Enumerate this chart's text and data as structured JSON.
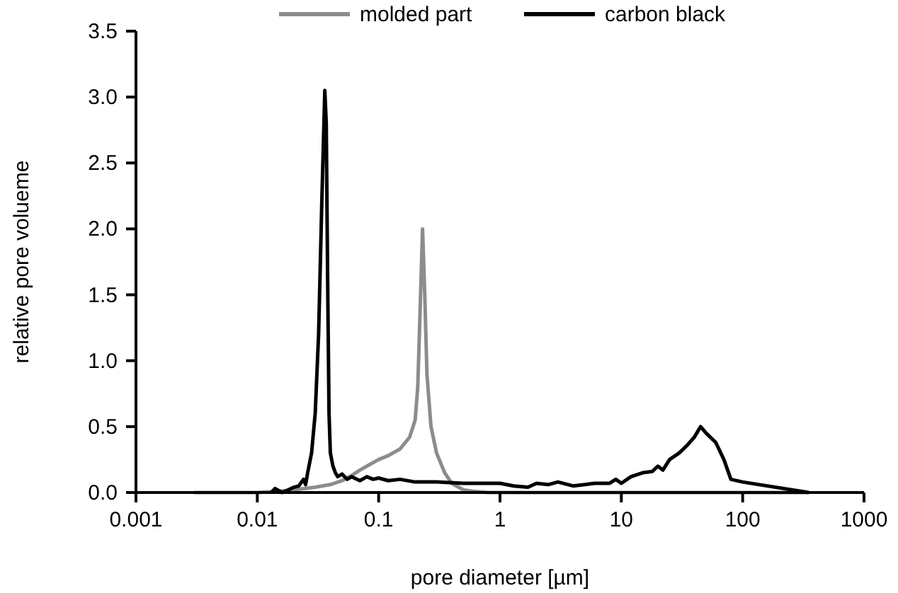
{
  "chart_data": {
    "type": "line",
    "xlabel": "pore diameter [µm]",
    "ylabel": "relative pore volueme",
    "log": "x",
    "xlim": [
      0.001,
      1000
    ],
    "xticks": [
      {
        "value": 0.001,
        "label": "0.001"
      },
      {
        "value": 0.01,
        "label": "0.01"
      },
      {
        "value": 0.1,
        "label": "0.1"
      },
      {
        "value": 1,
        "label": "1"
      },
      {
        "value": 10,
        "label": "10"
      },
      {
        "value": 100,
        "label": "100"
      },
      {
        "value": 1000,
        "label": "1000"
      }
    ],
    "ylim": [
      0,
      3.5
    ],
    "yticks": [
      {
        "value": 0,
        "label": "0.0"
      },
      {
        "value": 0.5,
        "label": "0.5"
      },
      {
        "value": 1,
        "label": "1.0"
      },
      {
        "value": 1.5,
        "label": "1.5"
      },
      {
        "value": 2,
        "label": "2.0"
      },
      {
        "value": 2.5,
        "label": "2.5"
      },
      {
        "value": 3,
        "label": "3.0"
      },
      {
        "value": 3.5,
        "label": "3.5"
      }
    ],
    "grid": false,
    "legend": "top",
    "marker": "none",
    "line_style": "solid",
    "series": [
      {
        "name": "molded part",
        "color": "#8c8c8c",
        "x": [
          0.003,
          0.01,
          0.015,
          0.02,
          0.03,
          0.04,
          0.05,
          0.06,
          0.07,
          0.08,
          0.1,
          0.12,
          0.15,
          0.18,
          0.2,
          0.21,
          0.22,
          0.23,
          0.24,
          0.25,
          0.27,
          0.3,
          0.35,
          0.4,
          0.5,
          0.6,
          0.8,
          1,
          2,
          10,
          100,
          350
        ],
        "values": [
          0,
          0,
          0.01,
          0.02,
          0.04,
          0.06,
          0.09,
          0.13,
          0.17,
          0.2,
          0.25,
          0.28,
          0.33,
          0.42,
          0.55,
          0.8,
          1.4,
          2.0,
          1.5,
          0.9,
          0.5,
          0.3,
          0.15,
          0.07,
          0.02,
          0.01,
          0,
          0,
          0,
          0,
          0,
          0
        ]
      },
      {
        "name": "carbon black",
        "color": "#000000",
        "x": [
          0.013,
          0.014,
          0.016,
          0.018,
          0.02,
          0.022,
          0.024,
          0.025,
          0.026,
          0.028,
          0.03,
          0.032,
          0.034,
          0.036,
          0.037,
          0.038,
          0.039,
          0.04,
          0.042,
          0.044,
          0.046,
          0.05,
          0.055,
          0.06,
          0.07,
          0.08,
          0.09,
          0.1,
          0.12,
          0.15,
          0.2,
          0.3,
          0.5,
          0.8,
          1,
          1.3,
          1.7,
          2,
          2.5,
          3,
          4,
          5,
          6,
          8,
          9,
          10,
          12,
          15,
          18,
          20,
          22,
          25,
          30,
          35,
          40,
          45,
          50,
          60,
          70,
          80,
          100,
          350
        ],
        "values": [
          0,
          0.03,
          0,
          0.02,
          0.04,
          0.05,
          0.1,
          0.06,
          0.15,
          0.3,
          0.6,
          1.2,
          2.2,
          3.05,
          2.8,
          1.6,
          0.6,
          0.3,
          0.2,
          0.15,
          0.12,
          0.14,
          0.1,
          0.12,
          0.09,
          0.12,
          0.1,
          0.11,
          0.09,
          0.1,
          0.08,
          0.08,
          0.07,
          0.07,
          0.07,
          0.05,
          0.04,
          0.07,
          0.06,
          0.08,
          0.05,
          0.06,
          0.07,
          0.07,
          0.1,
          0.07,
          0.12,
          0.15,
          0.16,
          0.2,
          0.17,
          0.25,
          0.3,
          0.36,
          0.42,
          0.5,
          0.45,
          0.38,
          0.25,
          0.1,
          0.08,
          0
        ]
      }
    ]
  }
}
